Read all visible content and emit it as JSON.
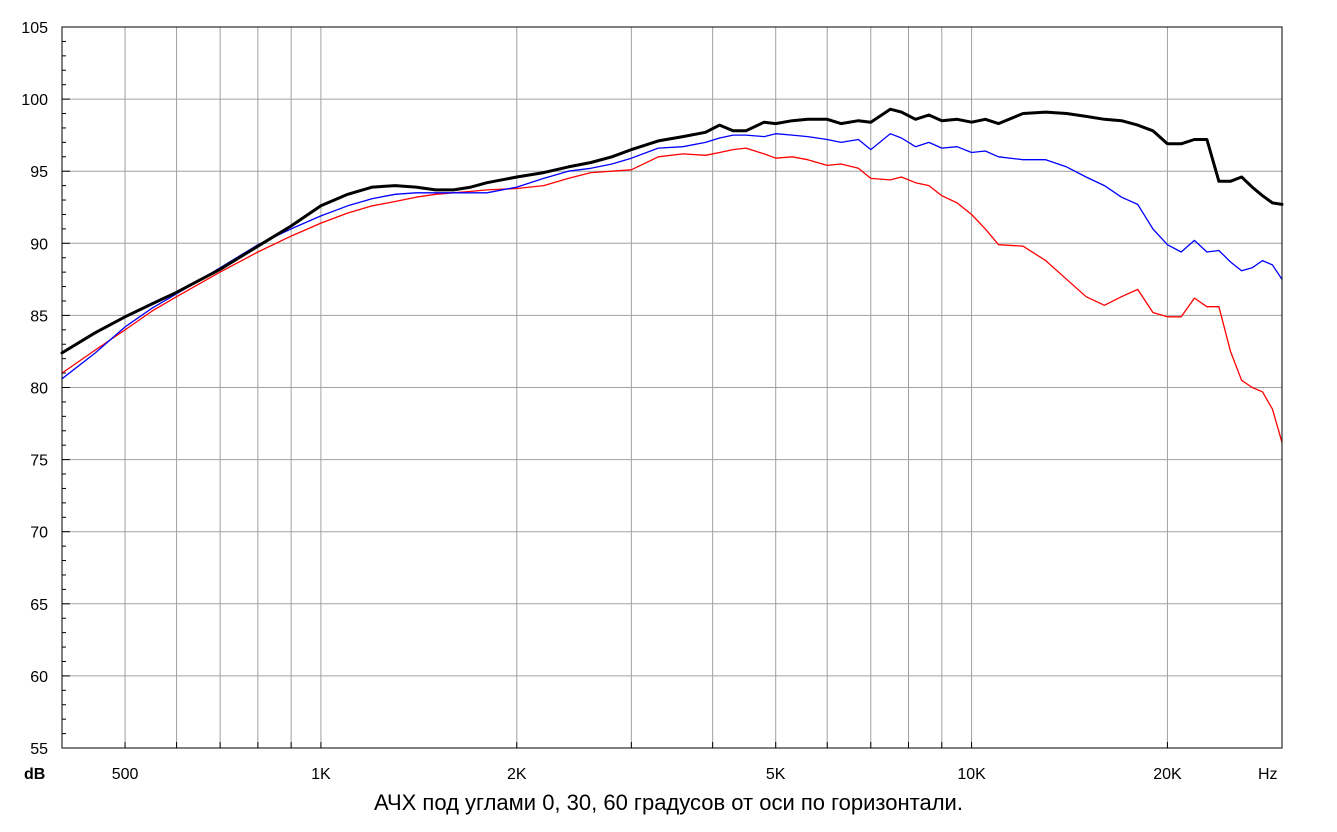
{
  "caption": "АЧХ под углами 0, 30, 60 градусов от оси по горизонтали.",
  "chart_data": {
    "type": "line",
    "title": "АЧХ под углами 0, 30, 60 градусов от оси по горизонтали.",
    "x_scale": "log",
    "xlim": [
      400,
      30000
    ],
    "ylim": [
      55,
      105
    ],
    "x_unit_label": "Hz",
    "y_unit_label": "dB",
    "grid": true,
    "y_ticks": [
      55,
      60,
      65,
      70,
      75,
      80,
      85,
      90,
      95,
      100,
      105
    ],
    "y_tick_labels": [
      "55",
      "60",
      "65",
      "70",
      "75",
      "80",
      "85",
      "90",
      "95",
      "100",
      "105"
    ],
    "x_grid": [
      500,
      600,
      700,
      800,
      900,
      1000,
      2000,
      3000,
      4000,
      5000,
      6000,
      7000,
      8000,
      9000,
      10000,
      20000
    ],
    "x_tick_values": [
      500,
      1000,
      2000,
      5000,
      10000,
      20000
    ],
    "x_tick_labels": [
      "500",
      "1K",
      "2K",
      "5K",
      "10K",
      "20K"
    ],
    "series": [
      {
        "color": "#000000",
        "stroke_width": 3,
        "x": [
          400,
          450,
          500,
          550,
          600,
          700,
          800,
          900,
          1000,
          1100,
          1200,
          1300,
          1400,
          1500,
          1600,
          1700,
          1800,
          2000,
          2200,
          2400,
          2600,
          2800,
          3000,
          3300,
          3600,
          3900,
          4100,
          4300,
          4500,
          4800,
          5000,
          5300,
          5600,
          6000,
          6300,
          6700,
          7000,
          7500,
          7800,
          8200,
          8600,
          9000,
          9500,
          10000,
          10500,
          11000,
          12000,
          13000,
          14000,
          15000,
          16000,
          17000,
          18000,
          19000,
          20000,
          21000,
          22000,
          23000,
          24000,
          25000,
          26000,
          27000,
          28000,
          29000,
          30000
        ],
        "y": [
          82.4,
          83.8,
          84.9,
          85.8,
          86.6,
          88.2,
          89.8,
          91.2,
          92.6,
          93.4,
          93.9,
          94.0,
          93.9,
          93.7,
          93.7,
          93.9,
          94.2,
          94.6,
          94.9,
          95.3,
          95.6,
          96.0,
          96.5,
          97.1,
          97.4,
          97.7,
          98.2,
          97.8,
          97.8,
          98.4,
          98.3,
          98.5,
          98.6,
          98.6,
          98.3,
          98.5,
          98.4,
          99.3,
          99.1,
          98.6,
          98.9,
          98.5,
          98.6,
          98.4,
          98.6,
          98.3,
          99.0,
          99.1,
          99.0,
          98.8,
          98.6,
          98.5,
          98.2,
          97.8,
          96.9,
          96.9,
          97.2,
          97.2,
          94.3,
          94.3,
          94.6,
          93.9,
          93.3,
          92.8,
          92.7
        ]
      },
      {
        "color": "#0000ff",
        "stroke_width": 1.3,
        "x": [
          400,
          450,
          500,
          550,
          600,
          700,
          800,
          900,
          1000,
          1100,
          1200,
          1300,
          1400,
          1500,
          1600,
          1700,
          1800,
          2000,
          2200,
          2400,
          2600,
          2800,
          3000,
          3300,
          3600,
          3900,
          4100,
          4300,
          4500,
          4800,
          5000,
          5300,
          5600,
          6000,
          6300,
          6700,
          7000,
          7500,
          7800,
          8200,
          8600,
          9000,
          9500,
          10000,
          10500,
          11000,
          12000,
          13000,
          14000,
          15000,
          16000,
          17000,
          18000,
          19000,
          20000,
          21000,
          22000,
          23000,
          24000,
          25000,
          26000,
          27000,
          28000,
          29000,
          30000
        ],
        "y": [
          80.6,
          82.4,
          84.2,
          85.5,
          86.5,
          88.3,
          89.9,
          91.0,
          91.9,
          92.6,
          93.1,
          93.4,
          93.5,
          93.5,
          93.5,
          93.5,
          93.5,
          93.9,
          94.5,
          95.0,
          95.2,
          95.5,
          95.9,
          96.6,
          96.7,
          97.0,
          97.3,
          97.5,
          97.5,
          97.4,
          97.6,
          97.5,
          97.4,
          97.2,
          97.0,
          97.2,
          96.5,
          97.6,
          97.3,
          96.7,
          97.0,
          96.6,
          96.7,
          96.3,
          96.4,
          96.0,
          95.8,
          95.8,
          95.3,
          94.6,
          94.0,
          93.2,
          92.7,
          91.0,
          89.9,
          89.4,
          90.2,
          89.4,
          89.5,
          88.7,
          88.1,
          88.3,
          88.8,
          88.5,
          87.5
        ]
      },
      {
        "color": "#ff0000",
        "stroke_width": 1.3,
        "x": [
          400,
          450,
          500,
          550,
          600,
          700,
          800,
          900,
          1000,
          1100,
          1200,
          1300,
          1400,
          1500,
          1600,
          1700,
          1800,
          2000,
          2200,
          2400,
          2600,
          2800,
          3000,
          3300,
          3600,
          3900,
          4100,
          4300,
          4500,
          4800,
          5000,
          5300,
          5600,
          6000,
          6300,
          6700,
          7000,
          7500,
          7800,
          8200,
          8600,
          9000,
          9500,
          10000,
          10500,
          11000,
          12000,
          13000,
          14000,
          15000,
          16000,
          17000,
          18000,
          19000,
          20000,
          21000,
          22000,
          23000,
          24000,
          25000,
          26000,
          27000,
          28000,
          29000,
          30000
        ],
        "y": [
          81.0,
          82.6,
          84.0,
          85.3,
          86.3,
          88.0,
          89.4,
          90.5,
          91.4,
          92.1,
          92.6,
          92.9,
          93.2,
          93.4,
          93.5,
          93.6,
          93.7,
          93.8,
          94.0,
          94.5,
          94.9,
          95.0,
          95.1,
          96.0,
          96.2,
          96.1,
          96.3,
          96.5,
          96.6,
          96.2,
          95.9,
          96.0,
          95.8,
          95.4,
          95.5,
          95.2,
          94.5,
          94.4,
          94.6,
          94.2,
          94.0,
          93.3,
          92.8,
          92.0,
          91.0,
          89.9,
          89.8,
          88.8,
          87.5,
          86.3,
          85.7,
          86.3,
          86.8,
          85.2,
          84.9,
          84.9,
          86.2,
          85.6,
          85.6,
          82.5,
          80.5,
          80.0,
          79.7,
          78.5,
          76.2
        ]
      }
    ]
  }
}
